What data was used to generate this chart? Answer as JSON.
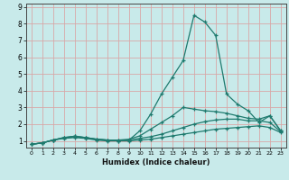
{
  "xlabel": "Humidex (Indice chaleur)",
  "x_values": [
    0,
    1,
    2,
    3,
    4,
    5,
    6,
    7,
    8,
    9,
    10,
    11,
    12,
    13,
    14,
    15,
    16,
    17,
    18,
    19,
    20,
    21,
    22,
    23
  ],
  "line1": [
    0.8,
    0.88,
    1.05,
    1.15,
    1.2,
    1.15,
    1.05,
    1.0,
    1.0,
    1.0,
    1.05,
    1.1,
    1.2,
    1.3,
    1.4,
    1.5,
    1.6,
    1.7,
    1.75,
    1.8,
    1.85,
    1.9,
    1.8,
    1.5
  ],
  "line2": [
    0.8,
    0.88,
    1.05,
    1.18,
    1.25,
    1.2,
    1.1,
    1.05,
    1.05,
    1.05,
    1.15,
    1.25,
    1.4,
    1.6,
    1.8,
    2.0,
    2.15,
    2.25,
    2.3,
    2.3,
    2.2,
    2.2,
    2.1,
    1.55
  ],
  "line3": [
    0.8,
    0.88,
    1.05,
    1.2,
    1.28,
    1.2,
    1.1,
    1.05,
    1.05,
    1.1,
    1.3,
    1.7,
    2.1,
    2.5,
    3.0,
    2.9,
    2.8,
    2.75,
    2.65,
    2.5,
    2.35,
    2.3,
    2.5,
    1.6
  ],
  "line4": [
    0.8,
    0.88,
    1.05,
    1.2,
    1.28,
    1.2,
    1.1,
    1.05,
    1.0,
    1.05,
    1.6,
    2.6,
    3.8,
    4.8,
    5.8,
    8.5,
    8.1,
    7.3,
    3.8,
    3.2,
    2.8,
    2.1,
    2.5,
    1.6
  ],
  "line_color": "#1e7a6e",
  "bg_color": "#c8eaea",
  "grid_color": "#d8a8a8",
  "ylim": [
    0.6,
    9.2
  ],
  "xlim": [
    -0.5,
    23.5
  ],
  "yticks": [
    1,
    2,
    3,
    4,
    5,
    6,
    7,
    8,
    9
  ],
  "xticks": [
    0,
    1,
    2,
    3,
    4,
    5,
    6,
    7,
    8,
    9,
    10,
    11,
    12,
    13,
    14,
    15,
    16,
    17,
    18,
    19,
    20,
    21,
    22,
    23
  ]
}
